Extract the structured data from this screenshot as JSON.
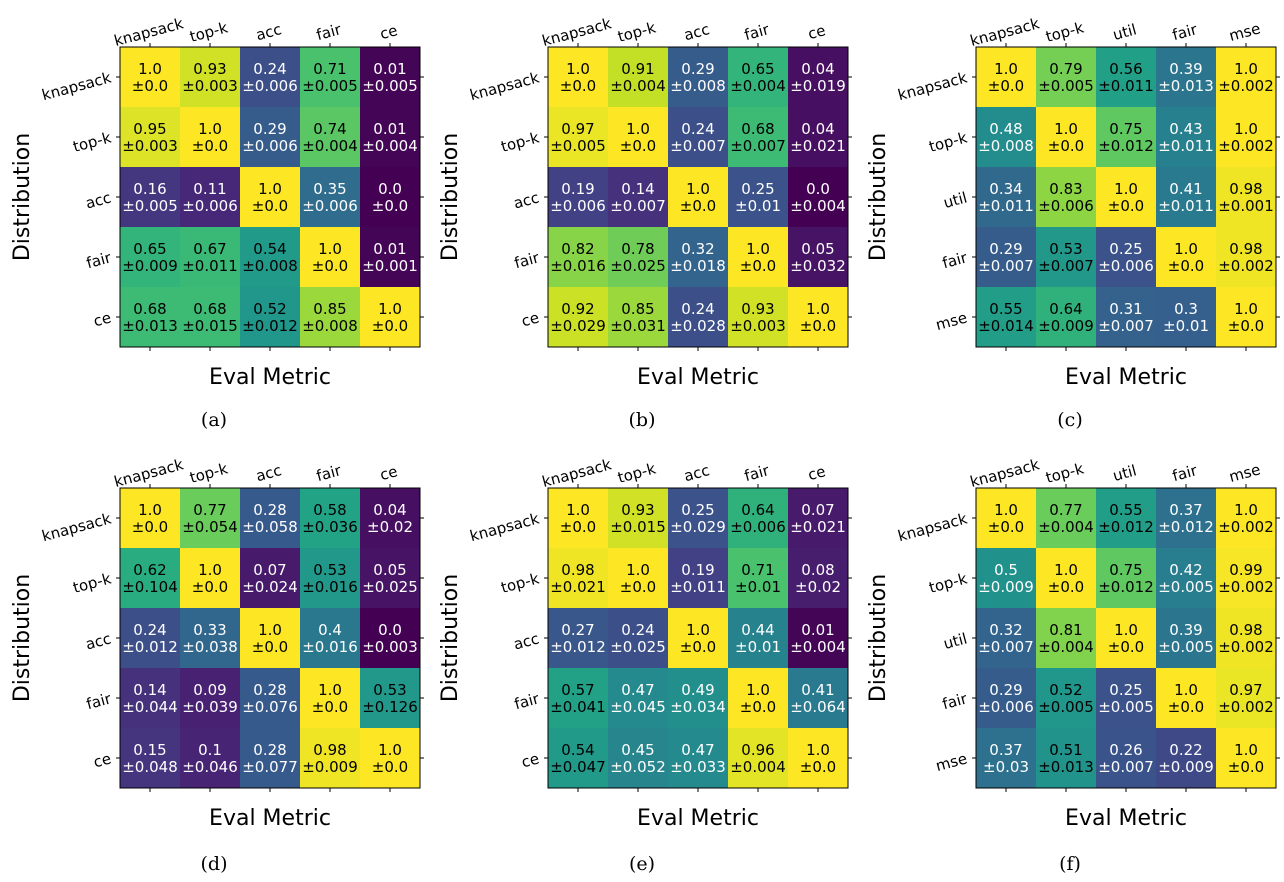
{
  "figure": {
    "panels": [
      {
        "caption": "(a)"
      },
      {
        "caption": "(b)"
      },
      {
        "caption": "(c)"
      },
      {
        "caption": "(d)"
      },
      {
        "caption": "(e)"
      },
      {
        "caption": "(f)"
      }
    ]
  },
  "chart_data": [
    {
      "type": "heatmap",
      "panel": "(a)",
      "xlabel": "Eval Metric",
      "ylabel": "Distribution",
      "x_categories": [
        "knapsack",
        "top-k",
        "acc",
        "fair",
        "ce"
      ],
      "y_categories": [
        "knapsack",
        "top-k",
        "acc",
        "fair",
        "ce"
      ],
      "colormap": "viridis",
      "vmin": 0,
      "vmax": 1,
      "values": [
        [
          1.0,
          0.93,
          0.24,
          0.71,
          0.01
        ],
        [
          0.95,
          1.0,
          0.29,
          0.74,
          0.01
        ],
        [
          0.16,
          0.11,
          1.0,
          0.35,
          0.0
        ],
        [
          0.65,
          0.67,
          0.54,
          1.0,
          0.01
        ],
        [
          0.68,
          0.68,
          0.52,
          0.85,
          1.0
        ]
      ],
      "errors": [
        [
          "±0.0",
          "±0.003",
          "±0.006",
          "±0.005",
          "±0.005"
        ],
        [
          "±0.003",
          "±0.0",
          "±0.006",
          "±0.004",
          "±0.004"
        ],
        [
          "±0.005",
          "±0.006",
          "±0.0",
          "±0.006",
          "±0.0"
        ],
        [
          "±0.009",
          "±0.011",
          "±0.008",
          "±0.0",
          "±0.001"
        ],
        [
          "±0.013",
          "±0.015",
          "±0.012",
          "±0.008",
          "±0.0"
        ]
      ]
    },
    {
      "type": "heatmap",
      "panel": "(b)",
      "xlabel": "Eval Metric",
      "ylabel": "Distribution",
      "x_categories": [
        "knapsack",
        "top-k",
        "acc",
        "fair",
        "ce"
      ],
      "y_categories": [
        "knapsack",
        "top-k",
        "acc",
        "fair",
        "ce"
      ],
      "colormap": "viridis",
      "vmin": 0,
      "vmax": 1,
      "values": [
        [
          1.0,
          0.91,
          0.29,
          0.65,
          0.04
        ],
        [
          0.97,
          1.0,
          0.24,
          0.68,
          0.04
        ],
        [
          0.19,
          0.14,
          1.0,
          0.25,
          0.0
        ],
        [
          0.82,
          0.78,
          0.32,
          1.0,
          0.05
        ],
        [
          0.92,
          0.85,
          0.24,
          0.93,
          1.0
        ]
      ],
      "errors": [
        [
          "±0.0",
          "±0.004",
          "±0.008",
          "±0.004",
          "±0.019"
        ],
        [
          "±0.005",
          "±0.0",
          "±0.007",
          "±0.007",
          "±0.021"
        ],
        [
          "±0.006",
          "±0.007",
          "±0.0",
          "±0.01",
          "±0.004"
        ],
        [
          "±0.016",
          "±0.025",
          "±0.018",
          "±0.0",
          "±0.032"
        ],
        [
          "±0.029",
          "±0.031",
          "±0.028",
          "±0.003",
          "±0.0"
        ]
      ]
    },
    {
      "type": "heatmap",
      "panel": "(c)",
      "xlabel": "Eval Metric",
      "ylabel": "Distribution",
      "x_categories": [
        "knapsack",
        "top-k",
        "util",
        "fair",
        "mse"
      ],
      "y_categories": [
        "knapsack",
        "top-k",
        "util",
        "fair",
        "mse"
      ],
      "colormap": "viridis",
      "vmin": 0,
      "vmax": 1,
      "values": [
        [
          1.0,
          0.79,
          0.56,
          0.39,
          1.0
        ],
        [
          0.48,
          1.0,
          0.75,
          0.43,
          1.0
        ],
        [
          0.34,
          0.83,
          1.0,
          0.41,
          0.98
        ],
        [
          0.29,
          0.53,
          0.25,
          1.0,
          0.98
        ],
        [
          0.55,
          0.64,
          0.31,
          0.3,
          1.0
        ]
      ],
      "errors": [
        [
          "±0.0",
          "±0.005",
          "±0.011",
          "±0.013",
          "±0.002"
        ],
        [
          "±0.008",
          "±0.0",
          "±0.012",
          "±0.011",
          "±0.002"
        ],
        [
          "±0.011",
          "±0.006",
          "±0.0",
          "±0.011",
          "±0.001"
        ],
        [
          "±0.007",
          "±0.007",
          "±0.006",
          "±0.0",
          "±0.002"
        ],
        [
          "±0.014",
          "±0.009",
          "±0.007",
          "±0.01",
          "±0.0"
        ]
      ]
    },
    {
      "type": "heatmap",
      "panel": "(d)",
      "xlabel": "Eval Metric",
      "ylabel": "Distribution",
      "x_categories": [
        "knapsack",
        "top-k",
        "acc",
        "fair",
        "ce"
      ],
      "y_categories": [
        "knapsack",
        "top-k",
        "acc",
        "fair",
        "ce"
      ],
      "colormap": "viridis",
      "vmin": 0,
      "vmax": 1,
      "values": [
        [
          1.0,
          0.77,
          0.28,
          0.58,
          0.04
        ],
        [
          0.62,
          1.0,
          0.07,
          0.53,
          0.05
        ],
        [
          0.24,
          0.33,
          1.0,
          0.4,
          0.0
        ],
        [
          0.14,
          0.09,
          0.28,
          1.0,
          0.53
        ],
        [
          0.15,
          0.1,
          0.28,
          0.98,
          1.0
        ]
      ],
      "errors": [
        [
          "±0.0",
          "±0.054",
          "±0.058",
          "±0.036",
          "±0.02"
        ],
        [
          "±0.104",
          "±0.0",
          "±0.024",
          "±0.016",
          "±0.025"
        ],
        [
          "±0.012",
          "±0.038",
          "±0.0",
          "±0.016",
          "±0.003"
        ],
        [
          "±0.044",
          "±0.039",
          "±0.076",
          "±0.0",
          "±0.126"
        ],
        [
          "±0.048",
          "±0.046",
          "±0.077",
          "±0.009",
          "±0.0"
        ]
      ]
    },
    {
      "type": "heatmap",
      "panel": "(e)",
      "xlabel": "Eval Metric",
      "ylabel": "Distribution",
      "x_categories": [
        "knapsack",
        "top-k",
        "acc",
        "fair",
        "ce"
      ],
      "y_categories": [
        "knapsack",
        "top-k",
        "acc",
        "fair",
        "ce"
      ],
      "colormap": "viridis",
      "vmin": 0,
      "vmax": 1,
      "values": [
        [
          1.0,
          0.93,
          0.25,
          0.64,
          0.07
        ],
        [
          0.98,
          1.0,
          0.19,
          0.71,
          0.08
        ],
        [
          0.27,
          0.24,
          1.0,
          0.44,
          0.01
        ],
        [
          0.57,
          0.47,
          0.49,
          1.0,
          0.41
        ],
        [
          0.54,
          0.45,
          0.47,
          0.96,
          1.0
        ]
      ],
      "errors": [
        [
          "±0.0",
          "±0.015",
          "±0.029",
          "±0.006",
          "±0.021"
        ],
        [
          "±0.021",
          "±0.0",
          "±0.011",
          "±0.01",
          "±0.02"
        ],
        [
          "±0.012",
          "±0.025",
          "±0.0",
          "±0.01",
          "±0.004"
        ],
        [
          "±0.041",
          "±0.045",
          "±0.034",
          "±0.0",
          "±0.064"
        ],
        [
          "±0.047",
          "±0.052",
          "±0.033",
          "±0.004",
          "±0.0"
        ]
      ]
    },
    {
      "type": "heatmap",
      "panel": "(f)",
      "xlabel": "Eval Metric",
      "ylabel": "Distribution",
      "x_categories": [
        "knapsack",
        "top-k",
        "util",
        "fair",
        "mse"
      ],
      "y_categories": [
        "knapsack",
        "top-k",
        "util",
        "fair",
        "mse"
      ],
      "colormap": "viridis",
      "vmin": 0,
      "vmax": 1,
      "values": [
        [
          1.0,
          0.77,
          0.55,
          0.37,
          1.0
        ],
        [
          0.5,
          1.0,
          0.75,
          0.42,
          0.99
        ],
        [
          0.32,
          0.81,
          1.0,
          0.39,
          0.98
        ],
        [
          0.29,
          0.52,
          0.25,
          1.0,
          0.97
        ],
        [
          0.37,
          0.51,
          0.26,
          0.22,
          1.0
        ]
      ],
      "errors": [
        [
          "±0.0",
          "±0.004",
          "±0.012",
          "±0.012",
          "±0.002"
        ],
        [
          "±0.009",
          "±0.0",
          "±0.012",
          "±0.005",
          "±0.002"
        ],
        [
          "±0.007",
          "±0.004",
          "±0.0",
          "±0.005",
          "±0.002"
        ],
        [
          "±0.006",
          "±0.005",
          "±0.005",
          "±0.0",
          "±0.002"
        ],
        [
          "±0.03",
          "±0.013",
          "±0.007",
          "±0.009",
          "±0.0"
        ]
      ]
    }
  ]
}
